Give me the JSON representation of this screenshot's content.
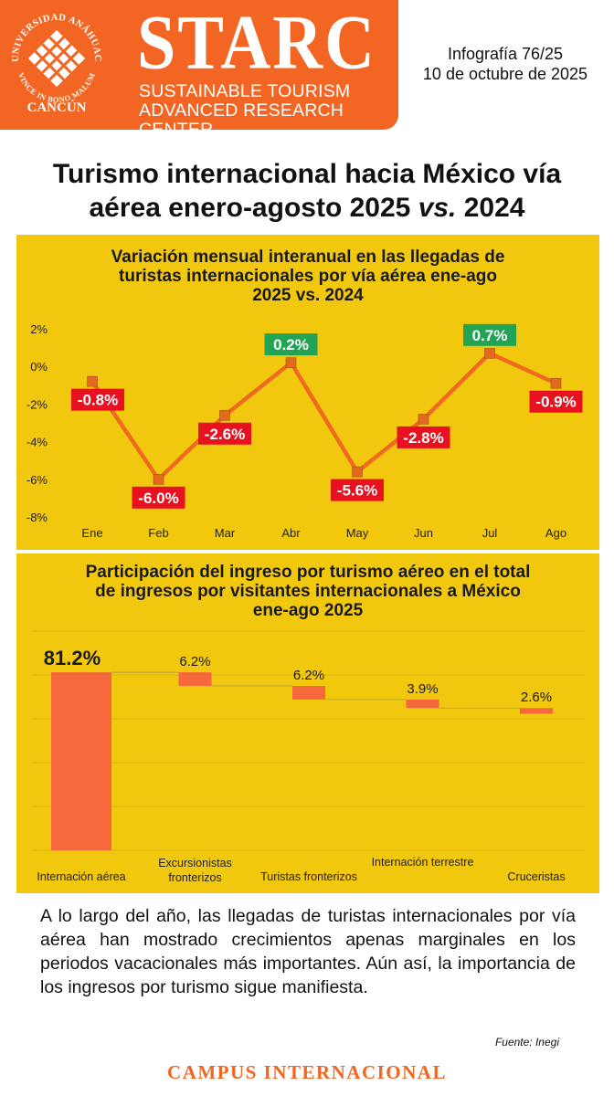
{
  "header": {
    "university_ring_text": "UNIVERSIDAD ANÁHUAC",
    "motto_ring_text": "VINCE IN BONO MALUM",
    "campus_city": "CANCÚN",
    "brand": "STARC",
    "brand_sub_line1": "SUSTAINABLE TOURISM",
    "brand_sub_line2": "ADVANCED RESEARCH CENTER",
    "issue": "Infografía 76/25",
    "date": "10 de octubre de 2025"
  },
  "title": {
    "line1": "Turismo internacional hacia México vía",
    "line2_a": "aérea enero-agosto 2025 ",
    "line2_vs": "vs.",
    "line2_b": " 2024"
  },
  "summary": "A lo largo del año, las llegadas de turistas internacionales por vía aérea han mostrado crecimientos apenas marginales en los periodos vacacionales más importantes. Aún así, la importancia de los ingresos por turismo sigue manifiesta.",
  "source": "Fuente: Inegi",
  "footer": "CAMPUS INTERNACIONAL",
  "colors": {
    "brand_orange": "#f26522",
    "panel_yellow": "#f2c80f",
    "line_orange": "#ef6a1f",
    "negative_label": "#e8111f",
    "positive_label": "#23a455",
    "bar_orange": "#f4683c"
  },
  "chart_data": [
    {
      "type": "line",
      "title_line1": "Variación mensual interanual en las llegadas de",
      "title_line2": "turistas internacionales por vía aérea ene-ago",
      "title_line3": "2025 vs. 2024",
      "categories": [
        "Ene",
        "Feb",
        "Mar",
        "Abr",
        "May",
        "Jun",
        "Jul",
        "Ago"
      ],
      "values": [
        -0.8,
        -6.0,
        -2.6,
        0.2,
        -5.6,
        -2.8,
        0.7,
        -0.9
      ],
      "data_labels": [
        "-0.8%",
        "-6.0%",
        "-2.6%",
        "0.2%",
        "-5.6%",
        "-2.8%",
        "0.7%",
        "-0.9%"
      ],
      "y_ticks": [
        2,
        0,
        -2,
        -4,
        -6,
        -8
      ],
      "y_tick_labels": [
        "2%",
        "0%",
        "-2%",
        "-4%",
        "-6%",
        "-8%"
      ],
      "ylim": [
        -8,
        2
      ],
      "grid": false,
      "legend": "none"
    },
    {
      "type": "bar",
      "subtype": "waterfall",
      "title_line1": "Participación del ingreso por turismo aéreo en el total",
      "title_line2": "de ingresos por visitantes internacionales a México",
      "title_line3": "ene-ago 2025",
      "categories": [
        [
          "Internación aérea"
        ],
        [
          "Excursionistas",
          "fronterizos"
        ],
        [
          "Turistas fronterizos"
        ],
        [
          "Internación terrestre"
        ],
        [
          "Cruceristas"
        ]
      ],
      "values": [
        81.2,
        6.2,
        6.2,
        3.9,
        2.6
      ],
      "data_labels": [
        "81.2%",
        "6.2%",
        "6.2%",
        "3.9%",
        "2.6%"
      ],
      "ylim": [
        0,
        100
      ],
      "grid": true,
      "legend": "none"
    }
  ]
}
